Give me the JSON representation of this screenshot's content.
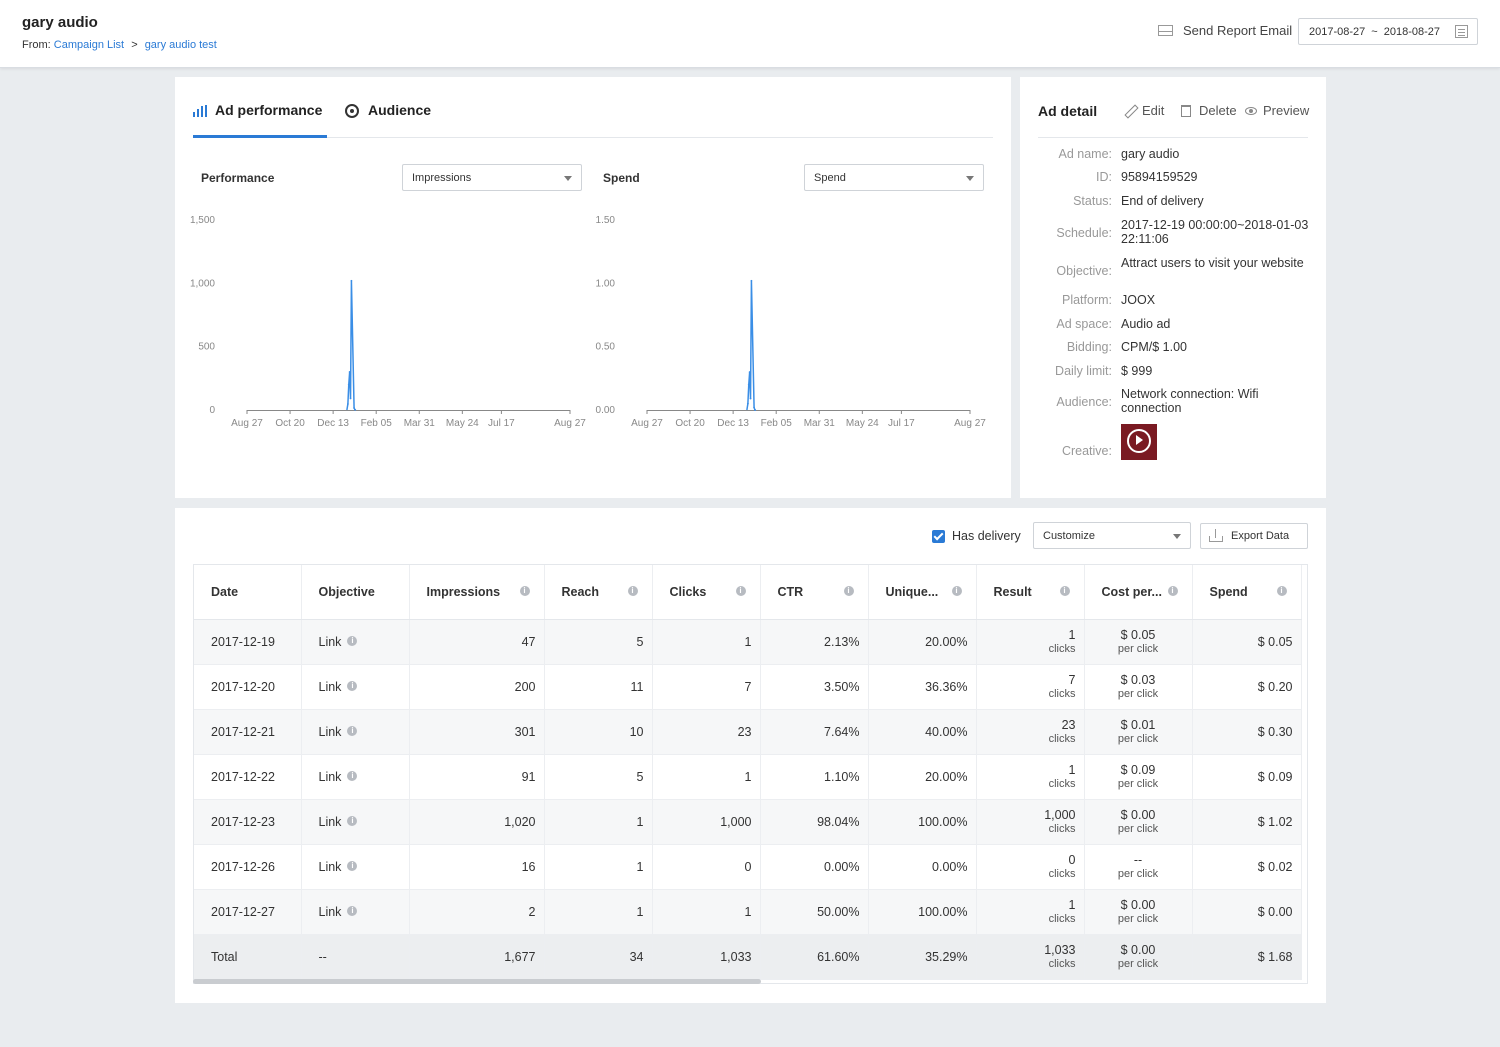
{
  "header": {
    "title": "gary audio",
    "from_label": "From:",
    "breadcrumb": [
      "Campaign List",
      "gary audio test"
    ],
    "breadcrumb_sep": ">",
    "send_report": "Send Report Email",
    "date_start": "2017-08-27",
    "date_sep": "~",
    "date_end": "2018-08-27"
  },
  "tabs": [
    "Ad performance",
    "Audience"
  ],
  "charts": {
    "left": {
      "label": "Performance",
      "select": "Impressions"
    },
    "right": {
      "label": "Spend",
      "select": "Spend"
    }
  },
  "chart_data": [
    {
      "type": "line",
      "x_ticks": [
        "Aug 27",
        "Oct 20",
        "Dec 13",
        "Feb 05",
        "Mar 31",
        "May 24",
        "Jul 17",
        "Aug 27"
      ],
      "y_ticks": [
        "1,500",
        "1,000",
        "500",
        "0"
      ],
      "ylim": [
        0,
        1500
      ],
      "series": [
        {
          "x": [
            "2017-12-19",
            "2017-12-20",
            "2017-12-21",
            "2017-12-22",
            "2017-12-23",
            "2017-12-26",
            "2017-12-27"
          ],
          "values": [
            47,
            200,
            301,
            91,
            1020,
            16,
            2
          ]
        }
      ]
    },
    {
      "type": "line",
      "x_ticks": [
        "Aug 27",
        "Oct 20",
        "Dec 13",
        "Feb 05",
        "Mar 31",
        "May 24",
        "Jul 17",
        "Aug 27"
      ],
      "y_ticks": [
        "1.50",
        "1.00",
        "0.50",
        "0.00"
      ],
      "ylim": [
        0,
        1.5
      ],
      "series": [
        {
          "x": [
            "2017-12-19",
            "2017-12-20",
            "2017-12-21",
            "2017-12-22",
            "2017-12-23",
            "2017-12-26",
            "2017-12-27"
          ],
          "values": [
            0.05,
            0.2,
            0.3,
            0.09,
            1.02,
            0.02,
            0.0
          ]
        }
      ]
    }
  ],
  "detail": {
    "title": "Ad detail",
    "edit": "Edit",
    "delete": "Delete",
    "preview": "Preview",
    "rows": [
      {
        "key": "Ad name:",
        "value": "gary audio"
      },
      {
        "key": "ID:",
        "value": "95894159529"
      },
      {
        "key": "Status:",
        "value": "End of delivery"
      },
      {
        "key": "Schedule:",
        "value": "2017-12-19 00:00:00~2018-01-03 22:11:06"
      },
      {
        "key": "Objective:",
        "value": "Attract users to visit your website"
      },
      {
        "key": "Platform:",
        "value": "JOOX"
      },
      {
        "key": "Ad space:",
        "value": "Audio ad"
      },
      {
        "key": "Bidding:",
        "value": "CPM/$ 1.00"
      },
      {
        "key": "Daily limit:",
        "value": "$ 999"
      },
      {
        "key": "Audience:",
        "value": "Network connection: Wifi connection"
      },
      {
        "key": "Creative:",
        "value": ""
      }
    ]
  },
  "toolbar": {
    "has_delivery": "Has delivery",
    "customize": "Customize",
    "export": "Export Data"
  },
  "table": {
    "headers": [
      "Date",
      "Objective",
      "Impressions",
      "Reach",
      "Clicks",
      "CTR",
      "Unique...",
      "Result",
      "Cost per...",
      "Spend"
    ],
    "rows": [
      {
        "date": "2017-12-19",
        "objective": "Link",
        "impressions": "47",
        "reach": "5",
        "clicks": "1",
        "ctr": "2.13%",
        "unique": "20.00%",
        "result": "1",
        "result_unit": "clicks",
        "cost": "$ 0.05",
        "cost_unit": "per click",
        "spend": "$ 0.05"
      },
      {
        "date": "2017-12-20",
        "objective": "Link",
        "impressions": "200",
        "reach": "11",
        "clicks": "7",
        "ctr": "3.50%",
        "unique": "36.36%",
        "result": "7",
        "result_unit": "clicks",
        "cost": "$ 0.03",
        "cost_unit": "per click",
        "spend": "$ 0.20"
      },
      {
        "date": "2017-12-21",
        "objective": "Link",
        "impressions": "301",
        "reach": "10",
        "clicks": "23",
        "ctr": "7.64%",
        "unique": "40.00%",
        "result": "23",
        "result_unit": "clicks",
        "cost": "$ 0.01",
        "cost_unit": "per click",
        "spend": "$ 0.30"
      },
      {
        "date": "2017-12-22",
        "objective": "Link",
        "impressions": "91",
        "reach": "5",
        "clicks": "1",
        "ctr": "1.10%",
        "unique": "20.00%",
        "result": "1",
        "result_unit": "clicks",
        "cost": "$ 0.09",
        "cost_unit": "per click",
        "spend": "$ 0.09"
      },
      {
        "date": "2017-12-23",
        "objective": "Link",
        "impressions": "1,020",
        "reach": "1",
        "clicks": "1,000",
        "ctr": "98.04%",
        "unique": "100.00%",
        "result": "1,000",
        "result_unit": "clicks",
        "cost": "$ 0.00",
        "cost_unit": "per click",
        "spend": "$ 1.02"
      },
      {
        "date": "2017-12-26",
        "objective": "Link",
        "impressions": "16",
        "reach": "1",
        "clicks": "0",
        "ctr": "0.00%",
        "unique": "0.00%",
        "result": "0",
        "result_unit": "clicks",
        "cost": "--",
        "cost_unit": "per click",
        "spend": "$ 0.02"
      },
      {
        "date": "2017-12-27",
        "objective": "Link",
        "impressions": "2",
        "reach": "1",
        "clicks": "1",
        "ctr": "50.00%",
        "unique": "100.00%",
        "result": "1",
        "result_unit": "clicks",
        "cost": "$ 0.00",
        "cost_unit": "per click",
        "spend": "$ 0.00"
      }
    ],
    "total": {
      "date": "Total",
      "objective": "--",
      "impressions": "1,677",
      "reach": "34",
      "clicks": "1,033",
      "ctr": "61.60%",
      "unique": "35.29%",
      "result": "1,033",
      "result_unit": "clicks",
      "cost": "$ 0.00",
      "cost_unit": "per click",
      "spend": "$ 1.68"
    }
  },
  "colors": {
    "accent": "#2a7ad5",
    "line": "#3a8ee6"
  },
  "icons": [
    "bar-chart-icon",
    "audience-icon",
    "mail-icon",
    "calendar-icon",
    "pencil-icon",
    "trash-icon",
    "eye-icon",
    "info-icon",
    "upload-icon",
    "checkbox-checked-icon",
    "play-icon"
  ]
}
